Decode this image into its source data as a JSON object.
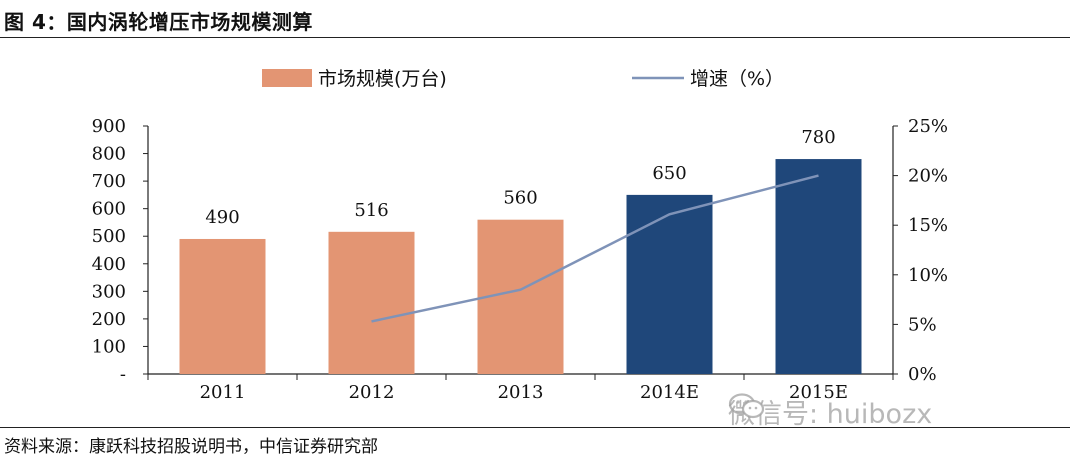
{
  "title": "图 4：国内涡轮增压市场规模测算",
  "source": "资料来源：康跃科技招股说明书，中信证券研究部",
  "watermark": "微信号: huibozx",
  "colors": {
    "bar_actual": "#E39573",
    "bar_estimate": "#1F477A",
    "line": "#7F93B8",
    "axis": "#222222"
  },
  "chart_data": {
    "type": "bar",
    "categories": [
      "2011",
      "2012",
      "2013",
      "2014E",
      "2015E"
    ],
    "series": [
      {
        "name": "市场规模(万台)",
        "type": "bar",
        "axis": "left",
        "values": [
          490,
          516,
          560,
          650,
          780
        ],
        "value_labels": [
          "490",
          "516",
          "560",
          "650",
          "780"
        ],
        "estimate_flags": [
          false,
          false,
          false,
          true,
          true
        ]
      },
      {
        "name": "增速（%）",
        "type": "line",
        "axis": "right",
        "values": [
          null,
          5.3,
          8.5,
          16.1,
          20.0
        ]
      }
    ],
    "y_left": {
      "range": [
        0,
        900
      ],
      "ticks": [
        "-",
        "100",
        "200",
        "300",
        "400",
        "500",
        "600",
        "700",
        "800",
        "900"
      ]
    },
    "y_right": {
      "range": [
        0,
        25
      ],
      "ticks": [
        "0%",
        "5%",
        "10%",
        "15%",
        "20%",
        "25%"
      ]
    },
    "legend_position": "top",
    "grid": false
  }
}
